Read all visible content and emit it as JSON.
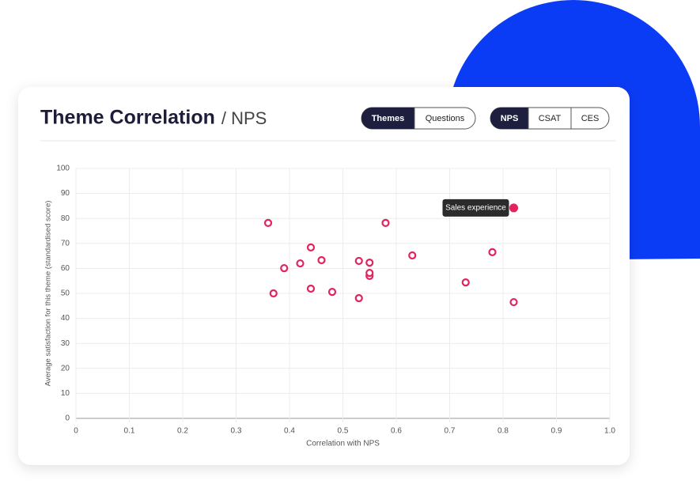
{
  "chart_data": {
    "type": "scatter",
    "title": "Theme Correlation",
    "subtitle": "/ NPS",
    "x_label": "Correlation with NPS",
    "y_label": "Average satisfaction for this theme (standardised score)",
    "xlim": [
      0,
      1
    ],
    "ylim": [
      0,
      100
    ],
    "xticks": [
      0,
      0.1,
      0.2,
      0.3,
      0.4,
      0.5,
      0.6,
      0.7,
      0.8,
      0.9,
      {
        "value": 1,
        "label": "1.0"
      }
    ],
    "yticks": [
      0,
      10,
      20,
      30,
      40,
      50,
      60,
      70,
      80,
      90,
      100
    ],
    "grid": true,
    "series": [
      {
        "color": "#e0245e",
        "x": [
          0.36,
          0.37,
          0.39,
          0.42,
          0.44,
          0.44,
          0.46,
          0.48,
          0.53,
          0.53,
          0.55,
          0.55,
          0.55,
          0.58,
          0.63,
          0.73,
          0.78,
          0.82,
          0.82
        ],
        "values": [
          78.2,
          50.0,
          60.1,
          62.0,
          68.4,
          51.9,
          63.3,
          50.6,
          48.1,
          63.0,
          57.0,
          58.2,
          62.3,
          78.2,
          65.2,
          54.4,
          66.5,
          84.2,
          46.5
        ],
        "labels": [
          null,
          null,
          null,
          null,
          null,
          null,
          null,
          null,
          null,
          null,
          null,
          null,
          null,
          null,
          null,
          null,
          null,
          "Sales experience",
          null
        ]
      }
    ]
  },
  "toggles": [
    {
      "options": [
        "Themes",
        "Questions"
      ],
      "selected": 0
    },
    {
      "options": [
        "NPS",
        "CSAT",
        "CES"
      ],
      "selected": 0
    }
  ]
}
